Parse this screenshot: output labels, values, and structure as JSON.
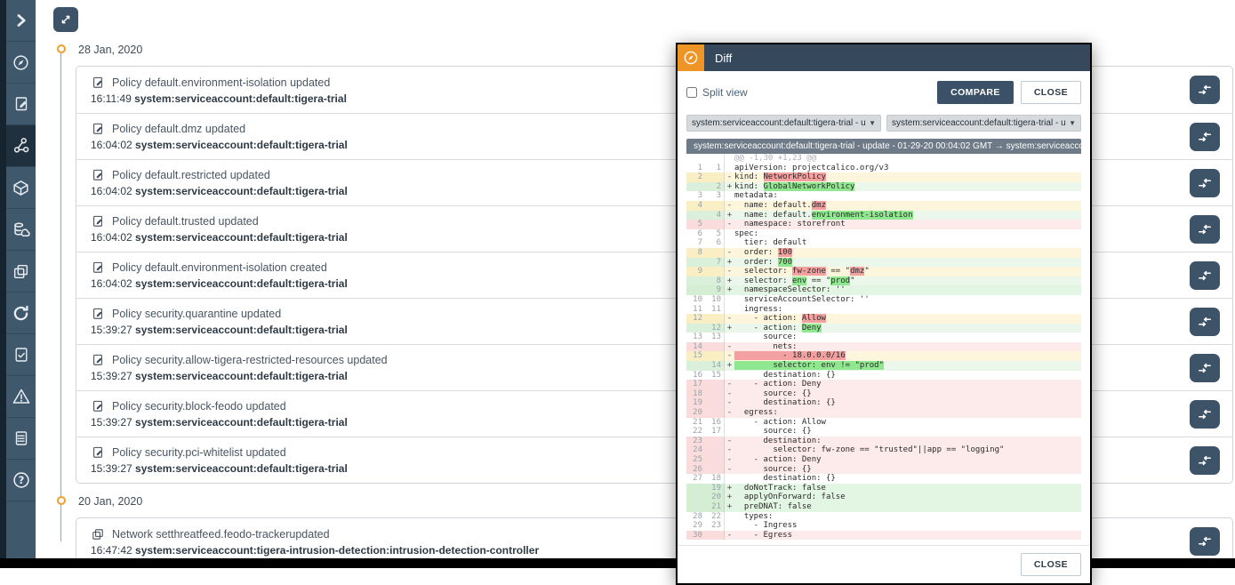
{
  "colors": {
    "accent_orange": "#EF9528",
    "header_navy": "#36495C",
    "sidebar_bg": "#40586C",
    "sidebar_active": "#20303E",
    "button_navy": "#3D5368",
    "diff_del_bg": "#FDEAEA",
    "diff_ins_bg": "#E3F5E3",
    "diff_change_bg": "#FDF6DC",
    "diff_del_hl": "#F2A0A0",
    "diff_ins_hl": "#8FE88F"
  },
  "sidebar": {
    "items": [
      {
        "id": "expand",
        "icon": "chevron-right-icon",
        "active": false
      },
      {
        "id": "compass",
        "icon": "compass-icon",
        "active": false
      },
      {
        "id": "policies",
        "icon": "document-edit-icon",
        "active": false
      },
      {
        "id": "timeline",
        "icon": "network-graph-icon",
        "active": true
      },
      {
        "id": "nodes",
        "icon": "cube-icon",
        "active": false
      },
      {
        "id": "storage",
        "icon": "storage-cloud-icon",
        "active": false
      },
      {
        "id": "layers",
        "icon": "layers-icon",
        "active": false
      },
      {
        "id": "refresh",
        "icon": "refresh-icon",
        "active": false
      },
      {
        "id": "compliance",
        "icon": "document-check-icon",
        "active": false
      },
      {
        "id": "alerts",
        "icon": "warning-icon",
        "active": false
      },
      {
        "id": "reports",
        "icon": "report-icon",
        "active": false
      },
      {
        "id": "help",
        "icon": "help-icon",
        "active": false
      }
    ]
  },
  "timeline": {
    "groups": [
      {
        "date": "28 Jan, 2020",
        "events": [
          {
            "icon": "policy-icon",
            "title": "Policy default.environment-isolation updated",
            "time": "16:11:49",
            "account": "system:serviceaccount:default:tigera-trial"
          },
          {
            "icon": "policy-icon",
            "title": "Policy default.dmz updated",
            "time": "16:04:02",
            "account": "system:serviceaccount:default:tigera-trial"
          },
          {
            "icon": "policy-icon",
            "title": "Policy default.restricted updated",
            "time": "16:04:02",
            "account": "system:serviceaccount:default:tigera-trial"
          },
          {
            "icon": "policy-icon",
            "title": "Policy default.trusted updated",
            "time": "16:04:02",
            "account": "system:serviceaccount:default:tigera-trial"
          },
          {
            "icon": "policy-icon",
            "title": "Policy default.environment-isolation created",
            "time": "16:04:02",
            "account": "system:serviceaccount:default:tigera-trial"
          },
          {
            "icon": "policy-icon",
            "title": "Policy security.quarantine updated",
            "time": "15:39:27",
            "account": "system:serviceaccount:default:tigera-trial"
          },
          {
            "icon": "policy-icon",
            "title": "Policy security.allow-tigera-restricted-resources updated",
            "time": "15:39:27",
            "account": "system:serviceaccount:default:tigera-trial"
          },
          {
            "icon": "policy-icon",
            "title": "Policy security.block-feodo updated",
            "time": "15:39:27",
            "account": "system:serviceaccount:default:tigera-trial"
          },
          {
            "icon": "policy-icon",
            "title": "Policy security.pci-whitelist updated",
            "time": "15:39:27",
            "account": "system:serviceaccount:default:tigera-trial"
          }
        ]
      },
      {
        "date": "20 Jan, 2020",
        "events": [
          {
            "icon": "network-set-icon",
            "title": "Network setthreatfeed.feodo-trackerupdated",
            "time": "16:47:42",
            "account": "system:serviceaccount:tigera-intrusion-detection:intrusion-detection-controller"
          }
        ]
      }
    ]
  },
  "modal": {
    "title": "Diff",
    "split_view_label": "Split view",
    "compare_button": "COMPARE",
    "close_button": "CLOSE",
    "footer_close_button": "CLOSE",
    "left_dropdown": "system:serviceaccount:default:tigera-trial - update -",
    "right_dropdown": "system:serviceaccount:default:tigera-trial - update -",
    "diff_header": "system:serviceaccount:default:tigera-trial - update - 01-29-20 00:04:02 GMT → system:serviceaccoun…",
    "diff": {
      "lines": [
        {
          "type": "hunk",
          "o": "",
          "n": "",
          "m": "",
          "parts": [
            {
              "t": "@@ -1,30 +1,23 @@"
            }
          ]
        },
        {
          "type": "ctx",
          "o": "1",
          "n": "1",
          "m": "",
          "parts": [
            {
              "t": "apiVersion: projectcalico.org/v3"
            }
          ]
        },
        {
          "type": "mdel",
          "o": "2",
          "n": "",
          "m": "-",
          "parts": [
            {
              "t": "kind: "
            },
            {
              "t": "NetworkPolicy",
              "h": true
            }
          ]
        },
        {
          "type": "mins",
          "o": "",
          "n": "2",
          "m": "+",
          "parts": [
            {
              "t": "kind: "
            },
            {
              "t": "GlobalNetworkPolicy",
              "h": true
            }
          ]
        },
        {
          "type": "ctx",
          "o": "3",
          "n": "3",
          "m": "",
          "parts": [
            {
              "t": "metadata:"
            }
          ]
        },
        {
          "type": "mdel",
          "o": "4",
          "n": "",
          "m": "-",
          "parts": [
            {
              "t": "  name: default."
            },
            {
              "t": "dmz",
              "h": true
            }
          ]
        },
        {
          "type": "mins",
          "o": "",
          "n": "4",
          "m": "+",
          "parts": [
            {
              "t": "  name: default."
            },
            {
              "t": "environment-isolation",
              "h": true
            }
          ]
        },
        {
          "type": "del",
          "o": "5",
          "n": "",
          "m": "-",
          "parts": [
            {
              "t": "  namespace: storefront"
            }
          ]
        },
        {
          "type": "ctx",
          "o": "6",
          "n": "5",
          "m": "",
          "parts": [
            {
              "t": "spec:"
            }
          ]
        },
        {
          "type": "ctx",
          "o": "7",
          "n": "6",
          "m": "",
          "parts": [
            {
              "t": "  tier: default"
            }
          ]
        },
        {
          "type": "mdel",
          "o": "8",
          "n": "",
          "m": "-",
          "parts": [
            {
              "t": "  order: "
            },
            {
              "t": "100",
              "h": true
            }
          ]
        },
        {
          "type": "mins",
          "o": "",
          "n": "7",
          "m": "+",
          "parts": [
            {
              "t": "  order: "
            },
            {
              "t": "700",
              "h": true
            }
          ]
        },
        {
          "type": "mdel",
          "o": "9",
          "n": "",
          "m": "-",
          "parts": [
            {
              "t": "  selector: "
            },
            {
              "t": "fw-zone",
              "h": true
            },
            {
              "t": " == \""
            },
            {
              "t": "dmz",
              "h": true
            },
            {
              "t": "\""
            }
          ]
        },
        {
          "type": "mins",
          "o": "",
          "n": "8",
          "m": "+",
          "parts": [
            {
              "t": "  selector: "
            },
            {
              "t": "env",
              "h": true
            },
            {
              "t": " == \""
            },
            {
              "t": "prod",
              "h": true
            },
            {
              "t": "\""
            }
          ]
        },
        {
          "type": "ins",
          "o": "",
          "n": "9",
          "m": "+",
          "parts": [
            {
              "t": "  namespaceSelector: ''"
            }
          ]
        },
        {
          "type": "ctx",
          "o": "10",
          "n": "10",
          "m": "",
          "parts": [
            {
              "t": "  serviceAccountSelector: ''"
            }
          ]
        },
        {
          "type": "ctx",
          "o": "11",
          "n": "11",
          "m": "",
          "parts": [
            {
              "t": "  ingress:"
            }
          ]
        },
        {
          "type": "mdel",
          "o": "12",
          "n": "",
          "m": "-",
          "parts": [
            {
              "t": "    - action: "
            },
            {
              "t": "Allow",
              "h": true
            }
          ]
        },
        {
          "type": "mins",
          "o": "",
          "n": "12",
          "m": "+",
          "parts": [
            {
              "t": "    - action: "
            },
            {
              "t": "Deny",
              "h": true
            }
          ]
        },
        {
          "type": "ctx",
          "o": "13",
          "n": "13",
          "m": "",
          "parts": [
            {
              "t": "      source:"
            }
          ]
        },
        {
          "type": "del",
          "o": "14",
          "n": "",
          "m": "-",
          "parts": [
            {
              "t": "        nets:"
            }
          ]
        },
        {
          "type": "mdel",
          "o": "15",
          "n": "",
          "m": "-",
          "parts": [
            {
              "t": "          - 18.0.0.0/16",
              "h": true
            }
          ]
        },
        {
          "type": "mins",
          "o": "",
          "n": "14",
          "m": "+",
          "parts": [
            {
              "t": "        selector: env != \"prod\"",
              "h": true
            }
          ]
        },
        {
          "type": "ctx",
          "o": "16",
          "n": "15",
          "m": "",
          "parts": [
            {
              "t": "      destination: {}"
            }
          ]
        },
        {
          "type": "del",
          "o": "17",
          "n": "",
          "m": "-",
          "parts": [
            {
              "t": "    - action: Deny"
            }
          ]
        },
        {
          "type": "del",
          "o": "18",
          "n": "",
          "m": "-",
          "parts": [
            {
              "t": "      source: {}"
            }
          ]
        },
        {
          "type": "del",
          "o": "19",
          "n": "",
          "m": "-",
          "parts": [
            {
              "t": "      destination: {}"
            }
          ]
        },
        {
          "type": "del",
          "o": "20",
          "n": "",
          "m": "-",
          "parts": [
            {
              "t": "  egress:"
            }
          ]
        },
        {
          "type": "ctx",
          "o": "21",
          "n": "16",
          "m": "",
          "parts": [
            {
              "t": "    - action: Allow"
            }
          ]
        },
        {
          "type": "ctx",
          "o": "22",
          "n": "17",
          "m": "",
          "parts": [
            {
              "t": "      source: {}"
            }
          ]
        },
        {
          "type": "del",
          "o": "23",
          "n": "",
          "m": "-",
          "parts": [
            {
              "t": "      destination:"
            }
          ]
        },
        {
          "type": "del",
          "o": "24",
          "n": "",
          "m": "-",
          "parts": [
            {
              "t": "        selector: fw-zone == \"trusted\"||app == \"logging\""
            }
          ]
        },
        {
          "type": "del",
          "o": "25",
          "n": "",
          "m": "-",
          "parts": [
            {
              "t": "    - action: Deny"
            }
          ]
        },
        {
          "type": "del",
          "o": "26",
          "n": "",
          "m": "-",
          "parts": [
            {
              "t": "      source: {}"
            }
          ]
        },
        {
          "type": "ctx",
          "o": "27",
          "n": "18",
          "m": "",
          "parts": [
            {
              "t": "      destination: {}"
            }
          ]
        },
        {
          "type": "ins",
          "o": "",
          "n": "19",
          "m": "+",
          "parts": [
            {
              "t": "  doNotTrack: false"
            }
          ]
        },
        {
          "type": "ins",
          "o": "",
          "n": "20",
          "m": "+",
          "parts": [
            {
              "t": "  applyOnForward: false"
            }
          ]
        },
        {
          "type": "ins",
          "o": "",
          "n": "21",
          "m": "+",
          "parts": [
            {
              "t": "  preDNAT: false"
            }
          ]
        },
        {
          "type": "ctx",
          "o": "28",
          "n": "22",
          "m": "",
          "parts": [
            {
              "t": "  types:"
            }
          ]
        },
        {
          "type": "ctx",
          "o": "29",
          "n": "23",
          "m": "",
          "parts": [
            {
              "t": "    - Ingress"
            }
          ]
        },
        {
          "type": "del",
          "o": "30",
          "n": "",
          "m": "-",
          "parts": [
            {
              "t": "    - Egress"
            }
          ]
        }
      ]
    }
  }
}
